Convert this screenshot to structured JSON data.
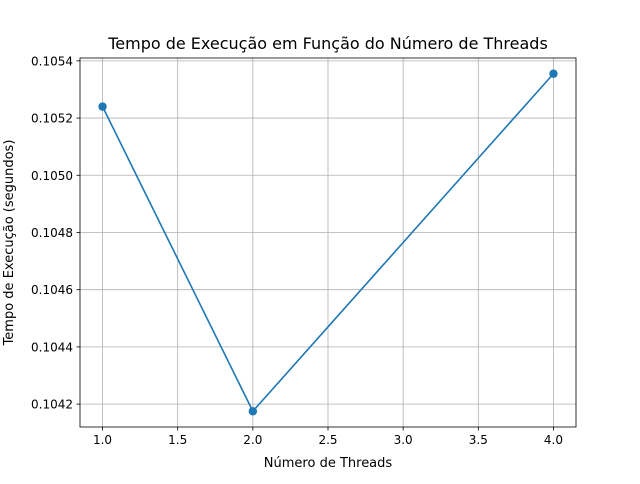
{
  "chart_data": {
    "type": "line",
    "title": "Tempo de Execução em Função do Número de Threads",
    "xlabel": "Número de Threads",
    "ylabel": "Tempo de Execução (segundos)",
    "xlim": [
      0.85,
      4.15
    ],
    "ylim": [
      0.10412,
      0.10541
    ],
    "xticks": [
      1.0,
      1.5,
      2.0,
      2.5,
      3.0,
      3.5,
      4.0
    ],
    "xtick_labels": [
      "1.0",
      "1.5",
      "2.0",
      "2.5",
      "3.0",
      "3.5",
      "4.0"
    ],
    "yticks": [
      0.1042,
      0.1044,
      0.1046,
      0.1048,
      0.105,
      0.1052,
      0.1054
    ],
    "ytick_labels": [
      "0.1042",
      "0.1044",
      "0.1046",
      "0.1048",
      "0.1050",
      "0.1052",
      "0.1054"
    ],
    "grid": true,
    "marker": "circle",
    "series": [
      {
        "x": [
          1,
          2,
          4
        ],
        "y": [
          0.10524,
          0.104175,
          0.105355
        ],
        "color": "#1f77b4"
      }
    ]
  }
}
